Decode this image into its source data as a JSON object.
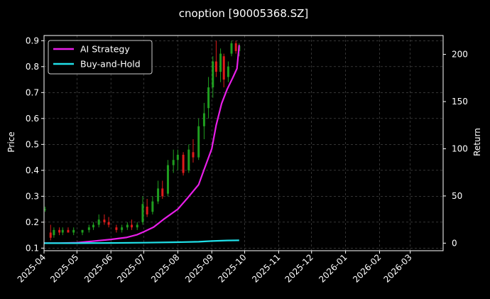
{
  "chart_data": {
    "type": "line",
    "title": "cnoption [90005368.SZ]",
    "ylabel_left": "Price",
    "ylabel_right": "Return",
    "xlabel": "",
    "grid": true,
    "legend_placement": "top-left",
    "x_ticks": [
      "2025-04",
      "2025-05",
      "2025-06",
      "2025-07",
      "2025-08",
      "2025-09",
      "2025-10",
      "2025-11",
      "2025-12",
      "2026-01",
      "2026-02",
      "2026-03"
    ],
    "xlim": [
      "2025-04-01",
      "2026-03-31"
    ],
    "ylim_left": [
      0.09,
      0.92
    ],
    "y_ticks_left": [
      "0.1",
      "0.2",
      "0.3",
      "0.4",
      "0.5",
      "0.6",
      "0.7",
      "0.8",
      "0.9"
    ],
    "ylim_right": [
      -8,
      220
    ],
    "y_ticks_right": [
      "0",
      "50",
      "100",
      "150",
      "200"
    ],
    "colors": {
      "background": "#000000",
      "up_candle": "#1f9e1f",
      "down_candle": "#e01b1b",
      "ai_strategy": "#e81ee8",
      "buy_and_hold": "#20e0e8",
      "grid": "#555555"
    },
    "series": [
      {
        "name": "AI Strategy",
        "axis": "right",
        "x": [
          "2025-04-01",
          "2025-04-15",
          "2025-05-01",
          "2025-05-15",
          "2025-06-01",
          "2025-06-15",
          "2025-06-25",
          "2025-07-01",
          "2025-07-10",
          "2025-07-20",
          "2025-08-01",
          "2025-08-10",
          "2025-08-20",
          "2025-08-25",
          "2025-09-01",
          "2025-09-05",
          "2025-09-10",
          "2025-09-15",
          "2025-09-20",
          "2025-09-24",
          "2025-09-26"
        ],
        "values": [
          0,
          0,
          0.5,
          2,
          4,
          6,
          9,
          12,
          17,
          26,
          36,
          48,
          62,
          78,
          100,
          125,
          148,
          163,
          175,
          185,
          210
        ]
      },
      {
        "name": "Buy-and-Hold",
        "axis": "right",
        "x": [
          "2025-04-01",
          "2025-05-01",
          "2025-06-01",
          "2025-07-01",
          "2025-08-01",
          "2025-08-20",
          "2025-09-01",
          "2025-09-15",
          "2025-09-26"
        ],
        "values": [
          0,
          0,
          0.2,
          0.5,
          1,
          1.5,
          2.2,
          2.8,
          3
        ]
      }
    ],
    "candles": [
      {
        "date": "2025-04-02",
        "open": 0.25,
        "high": 0.26,
        "low": 0.24,
        "close": 0.25
      },
      {
        "date": "2025-04-07",
        "open": 0.16,
        "high": 0.19,
        "low": 0.13,
        "close": 0.14
      },
      {
        "date": "2025-04-10",
        "open": 0.15,
        "high": 0.18,
        "low": 0.14,
        "close": 0.17
      },
      {
        "date": "2025-04-15",
        "open": 0.17,
        "high": 0.18,
        "low": 0.15,
        "close": 0.16
      },
      {
        "date": "2025-04-18",
        "open": 0.16,
        "high": 0.18,
        "low": 0.15,
        "close": 0.17
      },
      {
        "date": "2025-04-23",
        "open": 0.17,
        "high": 0.18,
        "low": 0.16,
        "close": 0.16
      },
      {
        "date": "2025-04-28",
        "open": 0.16,
        "high": 0.18,
        "low": 0.15,
        "close": 0.17
      },
      {
        "date": "2025-05-06",
        "open": 0.16,
        "high": 0.17,
        "low": 0.15,
        "close": 0.17
      },
      {
        "date": "2025-05-12",
        "open": 0.17,
        "high": 0.19,
        "low": 0.16,
        "close": 0.18
      },
      {
        "date": "2025-05-16",
        "open": 0.18,
        "high": 0.2,
        "low": 0.17,
        "close": 0.19
      },
      {
        "date": "2025-05-21",
        "open": 0.19,
        "high": 0.23,
        "low": 0.18,
        "close": 0.21
      },
      {
        "date": "2025-05-26",
        "open": 0.21,
        "high": 0.23,
        "low": 0.19,
        "close": 0.2
      },
      {
        "date": "2025-05-30",
        "open": 0.2,
        "high": 0.22,
        "low": 0.18,
        "close": 0.19
      },
      {
        "date": "2025-06-06",
        "open": 0.18,
        "high": 0.19,
        "low": 0.16,
        "close": 0.17
      },
      {
        "date": "2025-06-11",
        "open": 0.17,
        "high": 0.19,
        "low": 0.16,
        "close": 0.18
      },
      {
        "date": "2025-06-16",
        "open": 0.18,
        "high": 0.2,
        "low": 0.17,
        "close": 0.19
      },
      {
        "date": "2025-06-20",
        "open": 0.19,
        "high": 0.21,
        "low": 0.17,
        "close": 0.18
      },
      {
        "date": "2025-06-25",
        "open": 0.18,
        "high": 0.2,
        "low": 0.17,
        "close": 0.19
      },
      {
        "date": "2025-06-30",
        "open": 0.2,
        "high": 0.3,
        "low": 0.19,
        "close": 0.27
      },
      {
        "date": "2025-07-04",
        "open": 0.26,
        "high": 0.29,
        "low": 0.22,
        "close": 0.23
      },
      {
        "date": "2025-07-09",
        "open": 0.24,
        "high": 0.3,
        "low": 0.23,
        "close": 0.28
      },
      {
        "date": "2025-07-14",
        "open": 0.28,
        "high": 0.36,
        "low": 0.27,
        "close": 0.33
      },
      {
        "date": "2025-07-18",
        "open": 0.33,
        "high": 0.36,
        "low": 0.29,
        "close": 0.3
      },
      {
        "date": "2025-07-23",
        "open": 0.31,
        "high": 0.44,
        "low": 0.3,
        "close": 0.42
      },
      {
        "date": "2025-07-28",
        "open": 0.42,
        "high": 0.48,
        "low": 0.39,
        "close": 0.44
      },
      {
        "date": "2025-08-01",
        "open": 0.44,
        "high": 0.48,
        "low": 0.4,
        "close": 0.46
      },
      {
        "date": "2025-08-06",
        "open": 0.46,
        "high": 0.47,
        "low": 0.38,
        "close": 0.39
      },
      {
        "date": "2025-08-11",
        "open": 0.4,
        "high": 0.5,
        "low": 0.39,
        "close": 0.48
      },
      {
        "date": "2025-08-15",
        "open": 0.47,
        "high": 0.52,
        "low": 0.43,
        "close": 0.45
      },
      {
        "date": "2025-08-20",
        "open": 0.45,
        "high": 0.6,
        "low": 0.44,
        "close": 0.57
      },
      {
        "date": "2025-08-25",
        "open": 0.57,
        "high": 0.66,
        "low": 0.52,
        "close": 0.62
      },
      {
        "date": "2025-08-29",
        "open": 0.64,
        "high": 0.76,
        "low": 0.6,
        "close": 0.72
      },
      {
        "date": "2025-09-02",
        "open": 0.72,
        "high": 0.84,
        "low": 0.68,
        "close": 0.82
      },
      {
        "date": "2025-09-05",
        "open": 0.82,
        "high": 0.9,
        "low": 0.76,
        "close": 0.78
      },
      {
        "date": "2025-09-09",
        "open": 0.78,
        "high": 0.87,
        "low": 0.74,
        "close": 0.85
      },
      {
        "date": "2025-09-12",
        "open": 0.84,
        "high": 0.85,
        "low": 0.72,
        "close": 0.75
      },
      {
        "date": "2025-09-16",
        "open": 0.76,
        "high": 0.82,
        "low": 0.74,
        "close": 0.8
      },
      {
        "date": "2025-09-19",
        "open": 0.85,
        "high": 0.9,
        "low": 0.84,
        "close": 0.89
      },
      {
        "date": "2025-09-23",
        "open": 0.89,
        "high": 0.9,
        "low": 0.85,
        "close": 0.86
      },
      {
        "date": "2025-09-26",
        "open": 0.86,
        "high": 0.89,
        "low": 0.84,
        "close": 0.88
      }
    ]
  }
}
